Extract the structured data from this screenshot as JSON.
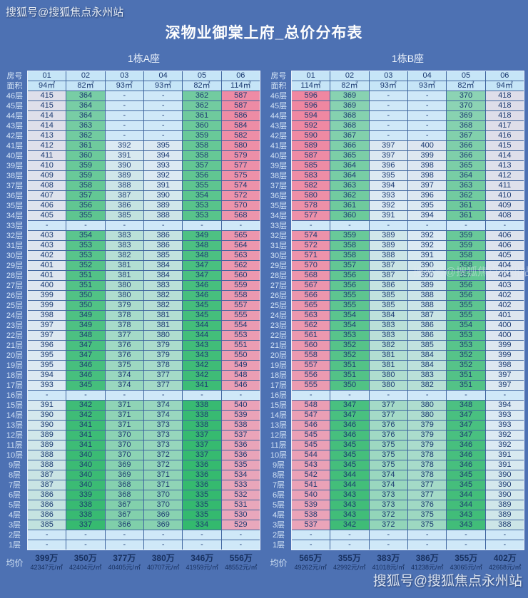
{
  "page": {
    "title": "深物业御棠上府_总价分布表",
    "watermark_top": "搜狐号@搜狐焦点永州站",
    "watermark_mid": "搜狐号@搜狐焦点永州站",
    "watermark_bottom": "搜狐号@搜狐焦点永州站",
    "background": "#4d71b3"
  },
  "labels": {
    "room_row": "房号",
    "area_row": "面积",
    "average_row": "均价",
    "empty_cell": "-"
  },
  "color_scale": {
    "min_value": 334,
    "mid_value": 392,
    "max_value": 596,
    "min_color": "#33b96e",
    "mid_color": "#dceaf3",
    "max_color": "#ef87a1",
    "empty_color": "#cfe8f8",
    "header_color": "#c6e5f7",
    "green_ease_power": 1.35
  },
  "chart_data": [
    {
      "type": "table",
      "title": "1栋A座",
      "rooms": [
        "01",
        "02",
        "03",
        "04",
        "05",
        "06"
      ],
      "areas": [
        "94㎡",
        "82㎡",
        "93㎡",
        "93㎡",
        "82㎡",
        "114㎡"
      ],
      "unit_note": "values are total price in 万 (10k CNY)",
      "floors": [
        "46层",
        "45层",
        "44层",
        "43层",
        "42层",
        "41层",
        "40层",
        "39层",
        "38层",
        "37层",
        "36层",
        "35层",
        "34层",
        "33层",
        "32层",
        "31层",
        "30层",
        "29层",
        "28层",
        "27层",
        "26层",
        "25层",
        "24层",
        "23层",
        "22层",
        "21层",
        "20层",
        "19层",
        "18层",
        "17层",
        "16层",
        "15层",
        "14层",
        "13层",
        "12层",
        "11层",
        "10层",
        "9层",
        "8层",
        "7层",
        "6层",
        "5层",
        "4层",
        "3层",
        "2层",
        "1层"
      ],
      "values": [
        [
          415,
          364,
          null,
          null,
          362,
          587
        ],
        [
          415,
          364,
          null,
          null,
          362,
          587
        ],
        [
          414,
          364,
          null,
          null,
          361,
          586
        ],
        [
          414,
          363,
          null,
          null,
          360,
          584
        ],
        [
          413,
          362,
          null,
          null,
          359,
          582
        ],
        [
          412,
          361,
          392,
          395,
          358,
          580
        ],
        [
          411,
          360,
          391,
          394,
          358,
          579
        ],
        [
          410,
          359,
          390,
          393,
          357,
          577
        ],
        [
          409,
          359,
          389,
          392,
          356,
          575
        ],
        [
          408,
          358,
          388,
          391,
          355,
          574
        ],
        [
          407,
          357,
          387,
          390,
          354,
          572
        ],
        [
          406,
          356,
          386,
          389,
          353,
          570
        ],
        [
          405,
          355,
          385,
          388,
          353,
          568
        ],
        [
          null,
          null,
          null,
          null,
          null,
          null
        ],
        [
          403,
          354,
          383,
          386,
          349,
          565
        ],
        [
          403,
          353,
          383,
          386,
          348,
          564
        ],
        [
          402,
          353,
          382,
          385,
          348,
          563
        ],
        [
          401,
          352,
          381,
          384,
          347,
          562
        ],
        [
          401,
          351,
          381,
          384,
          347,
          560
        ],
        [
          400,
          351,
          380,
          383,
          346,
          559
        ],
        [
          399,
          350,
          380,
          382,
          346,
          558
        ],
        [
          399,
          350,
          379,
          382,
          345,
          557
        ],
        [
          398,
          349,
          378,
          381,
          345,
          555
        ],
        [
          397,
          349,
          378,
          381,
          344,
          554
        ],
        [
          397,
          348,
          377,
          380,
          344,
          553
        ],
        [
          396,
          347,
          376,
          379,
          343,
          551
        ],
        [
          395,
          347,
          376,
          379,
          343,
          550
        ],
        [
          395,
          346,
          375,
          378,
          342,
          549
        ],
        [
          394,
          346,
          374,
          377,
          342,
          548
        ],
        [
          393,
          345,
          374,
          377,
          341,
          546
        ],
        [
          null,
          null,
          null,
          null,
          null,
          null
        ],
        [
          391,
          342,
          371,
          374,
          338,
          540
        ],
        [
          390,
          342,
          371,
          374,
          338,
          539
        ],
        [
          390,
          341,
          371,
          373,
          338,
          538
        ],
        [
          389,
          341,
          370,
          373,
          337,
          537
        ],
        [
          389,
          341,
          370,
          373,
          337,
          536
        ],
        [
          388,
          340,
          370,
          372,
          337,
          536
        ],
        [
          388,
          340,
          369,
          372,
          336,
          535
        ],
        [
          387,
          340,
          369,
          371,
          336,
          534
        ],
        [
          387,
          340,
          368,
          371,
          336,
          533
        ],
        [
          386,
          339,
          368,
          370,
          335,
          532
        ],
        [
          386,
          338,
          367,
          370,
          335,
          531
        ],
        [
          386,
          338,
          367,
          369,
          335,
          530
        ],
        [
          385,
          337,
          366,
          369,
          334,
          529
        ],
        [
          null,
          null,
          null,
          null,
          null,
          null
        ],
        [
          null,
          null,
          null,
          null,
          null,
          null
        ]
      ],
      "averages_wan": [
        "399万",
        "350万",
        "377万",
        "380万",
        "346万",
        "556万"
      ],
      "averages_per_sqm": [
        "42347元/㎡",
        "42404元/㎡",
        "40405元/㎡",
        "40707元/㎡",
        "41959元/㎡",
        "48552元/㎡"
      ]
    },
    {
      "type": "table",
      "title": "1栋B座",
      "rooms": [
        "01",
        "02",
        "03",
        "04",
        "05",
        "06"
      ],
      "areas": [
        "114㎡",
        "82㎡",
        "93㎡",
        "93㎡",
        "82㎡",
        "94㎡"
      ],
      "unit_note": "values are total price in 万 (10k CNY)",
      "floors": [
        "46层",
        "45层",
        "44层",
        "43层",
        "42层",
        "41层",
        "40层",
        "39层",
        "38层",
        "37层",
        "36层",
        "35层",
        "34层",
        "33层",
        "32层",
        "31层",
        "30层",
        "29层",
        "28层",
        "27层",
        "26层",
        "25层",
        "24层",
        "23层",
        "22层",
        "21层",
        "20层",
        "19层",
        "18层",
        "17层",
        "16层",
        "15层",
        "14层",
        "13层",
        "12层",
        "11层",
        "10层",
        "9层",
        "8层",
        "7层",
        "6层",
        "5层",
        "4层",
        "3层",
        "2层",
        "1层"
      ],
      "values": [
        [
          596,
          369,
          null,
          null,
          370,
          418
        ],
        [
          596,
          369,
          null,
          null,
          370,
          418
        ],
        [
          594,
          368,
          null,
          null,
          369,
          418
        ],
        [
          592,
          368,
          null,
          null,
          368,
          417
        ],
        [
          590,
          367,
          null,
          null,
          367,
          416
        ],
        [
          589,
          366,
          397,
          400,
          366,
          415
        ],
        [
          587,
          365,
          397,
          399,
          366,
          414
        ],
        [
          585,
          364,
          396,
          398,
          365,
          413
        ],
        [
          583,
          364,
          395,
          398,
          364,
          412
        ],
        [
          582,
          363,
          394,
          397,
          363,
          411
        ],
        [
          580,
          362,
          393,
          396,
          362,
          410
        ],
        [
          578,
          361,
          392,
          395,
          361,
          409
        ],
        [
          577,
          360,
          391,
          394,
          361,
          408
        ],
        [
          null,
          null,
          null,
          null,
          null,
          null
        ],
        [
          574,
          359,
          389,
          392,
          359,
          406
        ],
        [
          572,
          358,
          389,
          392,
          359,
          406
        ],
        [
          571,
          358,
          388,
          391,
          358,
          405
        ],
        [
          570,
          357,
          387,
          390,
          358,
          404
        ],
        [
          568,
          356,
          387,
          390,
          357,
          404
        ],
        [
          567,
          356,
          386,
          389,
          356,
          403
        ],
        [
          566,
          355,
          385,
          388,
          356,
          402
        ],
        [
          565,
          355,
          385,
          388,
          355,
          402
        ],
        [
          563,
          354,
          384,
          387,
          355,
          401
        ],
        [
          562,
          354,
          383,
          386,
          354,
          400
        ],
        [
          561,
          353,
          383,
          386,
          353,
          400
        ],
        [
          560,
          352,
          382,
          385,
          353,
          399
        ],
        [
          558,
          352,
          381,
          384,
          352,
          399
        ],
        [
          557,
          351,
          381,
          384,
          352,
          398
        ],
        [
          556,
          351,
          380,
          383,
          351,
          397
        ],
        [
          555,
          350,
          380,
          382,
          351,
          397
        ],
        [
          null,
          null,
          null,
          null,
          null,
          null
        ],
        [
          548,
          347,
          377,
          380,
          348,
          394
        ],
        [
          547,
          347,
          377,
          380,
          347,
          393
        ],
        [
          546,
          346,
          376,
          379,
          347,
          393
        ],
        [
          545,
          346,
          376,
          379,
          347,
          392
        ],
        [
          545,
          345,
          375,
          379,
          346,
          392
        ],
        [
          544,
          345,
          375,
          378,
          346,
          391
        ],
        [
          543,
          345,
          375,
          378,
          346,
          391
        ],
        [
          542,
          344,
          374,
          378,
          345,
          390
        ],
        [
          541,
          344,
          374,
          377,
          345,
          390
        ],
        [
          540,
          343,
          373,
          377,
          344,
          390
        ],
        [
          539,
          343,
          373,
          376,
          344,
          389
        ],
        [
          538,
          343,
          372,
          375,
          343,
          389
        ],
        [
          537,
          342,
          372,
          375,
          343,
          388
        ],
        [
          null,
          null,
          null,
          null,
          null,
          null
        ],
        [
          null,
          null,
          null,
          null,
          null,
          null
        ]
      ],
      "averages_wan": [
        "565万",
        "355万",
        "383万",
        "386万",
        "355万",
        "402万"
      ],
      "averages_per_sqm": [
        "49262元/㎡",
        "42992元/㎡",
        "41018元/㎡",
        "41238元/㎡",
        "43065元/㎡",
        "42668元/㎡"
      ]
    }
  ]
}
